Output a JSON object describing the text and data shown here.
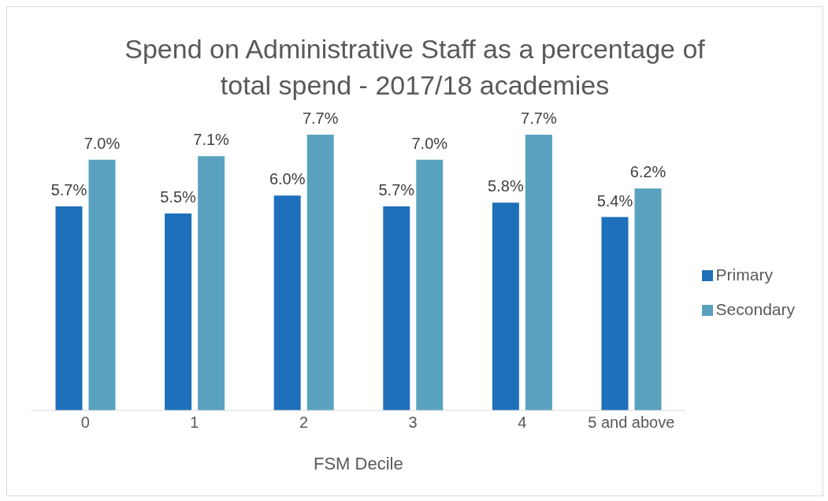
{
  "chart_data": {
    "type": "bar",
    "title": "Spend on Administrative Staff as a percentage of total spend - 2017/18 academies",
    "xlabel": "FSM Decile",
    "categories": [
      "0",
      "1",
      "2",
      "3",
      "4",
      "5 and above"
    ],
    "series": [
      {
        "name": "Primary",
        "color": "#1f70ba",
        "values": [
          5.7,
          5.5,
          6.0,
          5.7,
          5.8,
          5.4
        ],
        "value_labels": [
          "5.7%",
          "5.5%",
          "6.0%",
          "5.7%",
          "5.8%",
          "5.4%"
        ]
      },
      {
        "name": "Secondary",
        "color": "#58a2bf",
        "values": [
          7.0,
          7.1,
          7.7,
          7.0,
          7.7,
          6.2
        ],
        "value_labels": [
          "7.0%",
          "7.1%",
          "7.7%",
          "7.0%",
          "7.7%",
          "6.2%"
        ]
      }
    ],
    "legend": "right"
  }
}
